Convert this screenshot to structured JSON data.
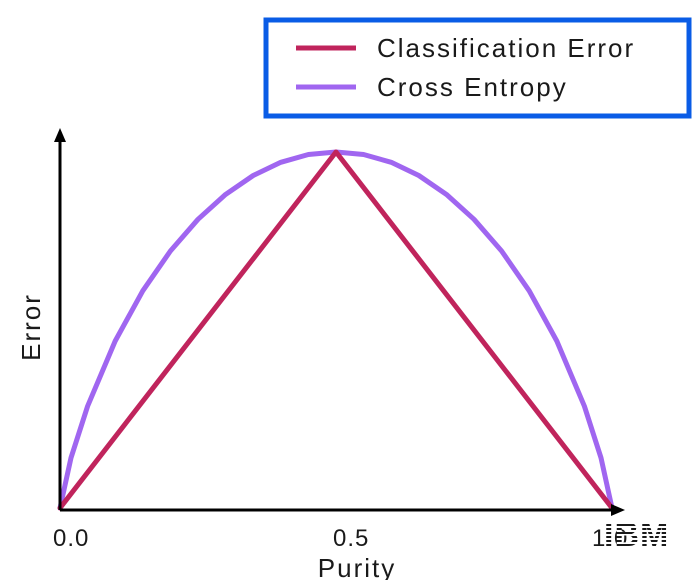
{
  "chart_data": {
    "type": "line",
    "xlabel": "Purity",
    "ylabel": "Error",
    "x_ticks": [
      "0.0",
      "0.5",
      "1.0"
    ],
    "xlim": [
      0,
      1
    ],
    "ylim": [
      0,
      1
    ],
    "grid": false,
    "legend_position": "top-right",
    "series": [
      {
        "name": "Classification Error",
        "color": "#c0245c",
        "x": [
          0,
          0.5,
          1
        ],
        "y": [
          0,
          1,
          0
        ]
      },
      {
        "name": "Cross Entropy",
        "color": "#a066f0",
        "x": [
          0,
          0.02,
          0.05,
          0.1,
          0.15,
          0.2,
          0.25,
          0.3,
          0.35,
          0.4,
          0.45,
          0.5,
          0.55,
          0.6,
          0.65,
          0.7,
          0.75,
          0.8,
          0.85,
          0.9,
          0.95,
          0.98,
          1
        ],
        "y": [
          0,
          0.141,
          0.286,
          0.469,
          0.61,
          0.722,
          0.811,
          0.881,
          0.934,
          0.971,
          0.993,
          1,
          0.993,
          0.971,
          0.934,
          0.881,
          0.811,
          0.722,
          0.61,
          0.469,
          0.286,
          0.141,
          0
        ]
      }
    ]
  },
  "legend": {
    "border_color": "#0a5ce6"
  },
  "logo": {
    "text": "IBM"
  }
}
